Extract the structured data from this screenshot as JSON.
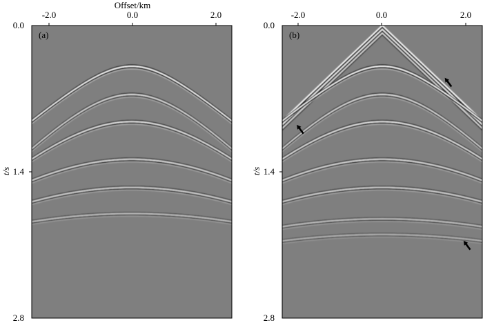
{
  "figure": {
    "colors": {
      "background": "#7f7f7f",
      "frame": "#000000",
      "arrow": "#000000"
    }
  },
  "chart_data": [
    {
      "type": "heatmap",
      "panel_label": "(a)",
      "xlabel": "Offset/km",
      "ylabel": "t/s",
      "xticks": [
        "-2.0",
        "0.0",
        "2.0"
      ],
      "xtick_values": [
        -2.0,
        0.0,
        2.0
      ],
      "yticks": [
        "0.0",
        "1.4",
        "2.8"
      ],
      "ytick_values": [
        0.0,
        1.4,
        2.8
      ],
      "xlim": [
        -2.4,
        2.4
      ],
      "ylim": [
        0.0,
        2.8
      ],
      "grid": false,
      "events": [
        {
          "t0": 0.39,
          "v": 2.9,
          "amp": 1.0
        },
        {
          "t0": 0.66,
          "v": 2.45,
          "amp": 0.75
        },
        {
          "t0": 0.92,
          "v": 2.7,
          "amp": 0.8
        },
        {
          "t0": 1.28,
          "v": 3.2,
          "amp": 0.7
        },
        {
          "t0": 1.55,
          "v": 3.6,
          "amp": 0.65
        },
        {
          "t0": 1.8,
          "v": 4.5,
          "amp": 0.5
        }
      ],
      "arrows": []
    },
    {
      "type": "heatmap",
      "panel_label": "(b)",
      "xlabel": "Offset/km",
      "ylabel": "t/s",
      "xticks": [
        "-2.0",
        "0.0",
        "2.0"
      ],
      "xtick_values": [
        -2.0,
        0.0,
        2.0
      ],
      "yticks": [
        "0.0",
        "1.4",
        "2.8"
      ],
      "ytick_values": [
        0.0,
        1.4,
        2.8
      ],
      "xlim": [
        -2.4,
        2.4
      ],
      "ylim": [
        0.0,
        2.8
      ],
      "grid": false,
      "direct_wave": {
        "t0": 0.0,
        "slope_s_per_km": 0.38
      },
      "events": [
        {
          "t0": 0.39,
          "v": 2.9,
          "amp": 1.0
        },
        {
          "t0": 0.66,
          "v": 2.45,
          "amp": 0.75
        },
        {
          "t0": 0.92,
          "v": 2.7,
          "amp": 0.8
        },
        {
          "t0": 1.28,
          "v": 3.2,
          "amp": 0.7
        },
        {
          "t0": 1.55,
          "v": 3.6,
          "amp": 0.65
        },
        {
          "t0": 1.85,
          "v": 4.5,
          "amp": 0.5
        },
        {
          "t0": 2.0,
          "v": 4.8,
          "amp": 0.4
        }
      ],
      "arrows": [
        {
          "x": -2.05,
          "t": 0.95,
          "dir": "up-left"
        },
        {
          "x": 1.5,
          "t": 0.5,
          "dir": "up-left"
        },
        {
          "x": 1.95,
          "t": 2.06,
          "dir": "up-left"
        }
      ]
    }
  ]
}
